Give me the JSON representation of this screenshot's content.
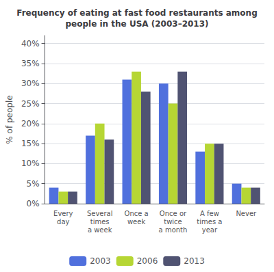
{
  "chart_data": {
    "type": "bar",
    "title": "Frequency of eating at fast food restaurants among\npeople in the USA (2003–2013)",
    "categories": [
      "Every\nday",
      "Several\ntimes\na week",
      "Once a\nweek",
      "Once or\ntwice\na month",
      "A few\ntimes a\nyear",
      "Never"
    ],
    "series": [
      {
        "name": "2003",
        "values": [
          4,
          17,
          31,
          30,
          13,
          5
        ]
      },
      {
        "name": "2006",
        "values": [
          3,
          20,
          33,
          25,
          15,
          4
        ]
      },
      {
        "name": "2013",
        "values": [
          3,
          16,
          28,
          33,
          15,
          4
        ]
      }
    ],
    "ylabel": "% of people",
    "ylim": [
      0,
      42
    ],
    "yticks": [
      {
        "value": 0,
        "label": "0%"
      },
      {
        "value": 5,
        "label": "5%"
      },
      {
        "value": 10,
        "label": "10%"
      },
      {
        "value": 15,
        "label": "15%"
      },
      {
        "value": 20,
        "label": "20%"
      },
      {
        "value": 25,
        "label": "25%"
      },
      {
        "value": 30,
        "label": "30%"
      },
      {
        "value": 35,
        "label": "35%"
      },
      {
        "value": 40,
        "label": "40%"
      }
    ],
    "grid": true,
    "legend": "bottom"
  }
}
